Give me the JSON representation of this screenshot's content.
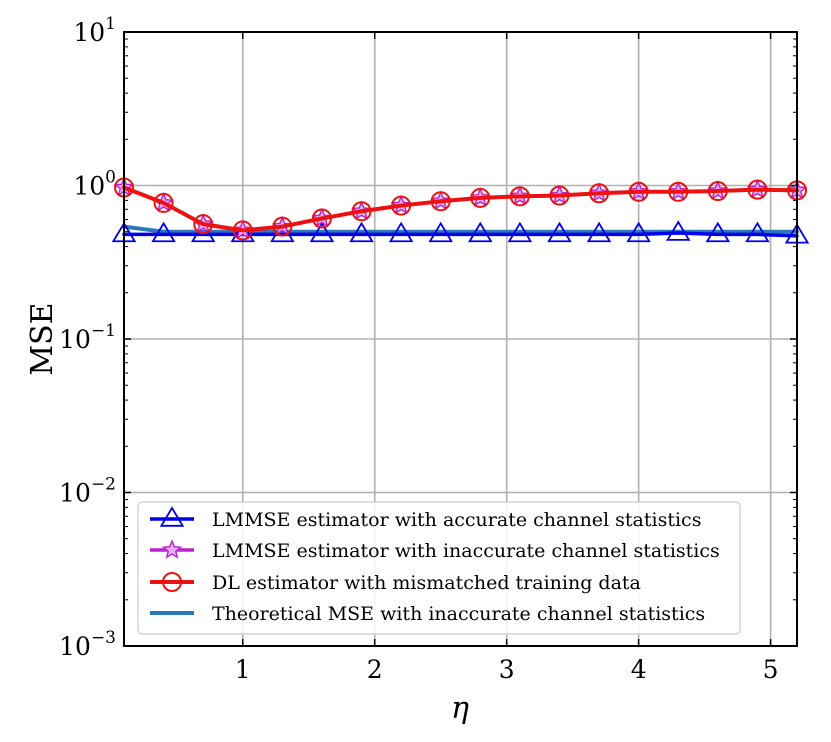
{
  "chart_data": {
    "type": "line",
    "title": "",
    "xlabel": "η",
    "ylabel": "MSE",
    "xlim": [
      0.1,
      5.2
    ],
    "ylim": [
      0.001,
      10
    ],
    "yscale": "log",
    "grid": true,
    "legend_position": "lower-left",
    "x_ticks": [
      1,
      2,
      3,
      4,
      5
    ],
    "x_tick_labels": [
      "1",
      "2",
      "3",
      "4",
      "5"
    ],
    "y_ticks": [
      0.001,
      0.01,
      0.1,
      1,
      10
    ],
    "y_tick_labels": [
      {
        "base": "10",
        "exp": "−3"
      },
      {
        "base": "10",
        "exp": "−2"
      },
      {
        "base": "10",
        "exp": "−1"
      },
      {
        "base": "10",
        "exp": "0"
      },
      {
        "base": "10",
        "exp": "1"
      }
    ],
    "x": [
      0.1,
      0.4,
      0.7,
      1.0,
      1.3,
      1.6,
      1.9,
      2.2,
      2.5,
      2.8,
      3.1,
      3.4,
      3.7,
      4.0,
      4.3,
      4.6,
      4.9,
      5.2
    ],
    "series": [
      {
        "name": "LMMSE estimator with accurate channel statistics",
        "color": "#0000ee",
        "marker": "triangle",
        "values": [
          0.48,
          0.48,
          0.48,
          0.48,
          0.48,
          0.48,
          0.48,
          0.48,
          0.48,
          0.48,
          0.48,
          0.48,
          0.48,
          0.48,
          0.49,
          0.48,
          0.48,
          0.47
        ]
      },
      {
        "name": "LMMSE estimator with inaccurate channel statistics",
        "color": "#bb22cc",
        "marker": "star",
        "values": [
          0.97,
          0.77,
          0.56,
          0.51,
          0.54,
          0.61,
          0.68,
          0.74,
          0.79,
          0.83,
          0.85,
          0.86,
          0.89,
          0.91,
          0.91,
          0.92,
          0.94,
          0.93
        ]
      },
      {
        "name": "DL estimator with mismatched training data",
        "color": "#ee1111",
        "marker": "circle",
        "values": [
          0.97,
          0.77,
          0.56,
          0.51,
          0.54,
          0.61,
          0.68,
          0.74,
          0.79,
          0.83,
          0.85,
          0.86,
          0.89,
          0.91,
          0.91,
          0.92,
          0.94,
          0.93
        ]
      },
      {
        "name": "Theoretical MSE with inaccurate channel statistics",
        "color": "#2a7ab8",
        "marker": "none",
        "values": [
          0.54,
          0.5,
          0.5,
          0.5,
          0.5,
          0.5,
          0.5,
          0.5,
          0.5,
          0.5,
          0.5,
          0.5,
          0.5,
          0.5,
          0.5,
          0.5,
          0.5,
          0.5
        ]
      }
    ]
  }
}
